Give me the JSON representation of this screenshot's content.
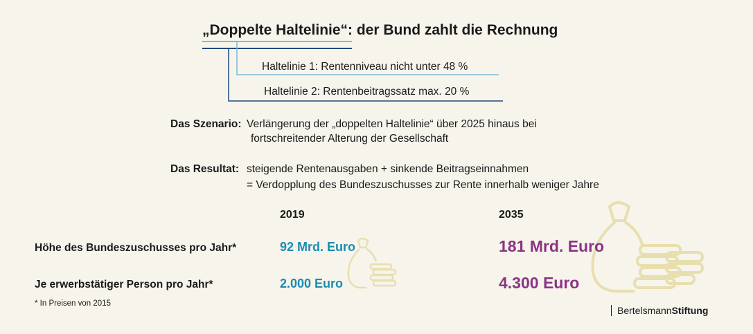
{
  "title": "„Doppelte Haltelinie“: der Bund zahlt die Rechnung",
  "haltelinien": [
    "Haltelinie 1: Rentenniveau nicht unter 48 %",
    "Haltelinie 2: Rentenbeitragssatz max. 20 %"
  ],
  "szenario": {
    "label": "Das Szenario:",
    "line1": "Verlängerung der „doppelten Haltelinie“ über 2025 hinaus bei",
    "line2": "fortschreitender Alterung der Gesellschaft"
  },
  "resultat": {
    "label": "Das Resultat:",
    "line1": "steigende Rentenausgaben + sinkende Beitragseinnahmen",
    "line2": "= Verdopplung des Bundeszuschusses zur Rente innerhalb weniger Jahre"
  },
  "table": {
    "years": [
      "2019",
      "2035"
    ],
    "rows": [
      {
        "label": "Höhe des Bundeszuschusses pro Jahr*",
        "v2019": "92 Mrd. Euro",
        "v2035": "181 Mrd. Euro"
      },
      {
        "label": "Je erwerbstätiger Person pro Jahr*",
        "v2019": "2.000 Euro",
        "v2035": "4.300 Euro"
      }
    ]
  },
  "footnote": "* In Preisen von 2015",
  "logo": {
    "part1": "Bertelsmann",
    "part2": "Stiftung"
  },
  "colors": {
    "background": "#f7f4ec",
    "blue_2019": "#1a8cb0",
    "purple_2035": "#8a3484",
    "line_light": "#7fb8d6",
    "line_dark": "#1f4a7a",
    "icon": "#e8dfae"
  },
  "icons": [
    "money-bag-coins-icon-small",
    "money-bag-coins-icon-large"
  ]
}
